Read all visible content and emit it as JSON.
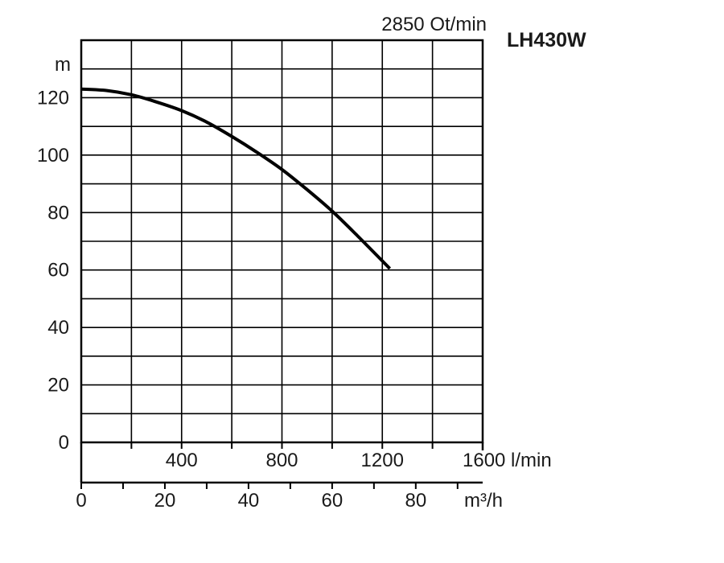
{
  "chart_data": {
    "type": "line",
    "title": "LH430W",
    "subtitle": "2850 Ot/min",
    "ylabel": "m",
    "ylim": [
      0,
      140
    ],
    "yticks": [
      0,
      20,
      40,
      60,
      80,
      100,
      120
    ],
    "xlim": [
      0,
      1600
    ],
    "xlabel_lpm": "l/min",
    "xticks_lpm": [
      400,
      800,
      1200,
      1600
    ],
    "xticks_lpm_labels": [
      "400",
      "800",
      "1200",
      "1600 l/min"
    ],
    "xlabel_m3h": "m³/h",
    "xticks_m3h": [
      0,
      20,
      40,
      60,
      80
    ],
    "xticks_m3h_labels": [
      "0",
      "20",
      "40",
      "60",
      "80",
      "m³/h"
    ],
    "grid": true,
    "series": [
      {
        "x": [
          0,
          100,
          200,
          300,
          400,
          500,
          600,
          700,
          800,
          900,
          1000,
          1100,
          1230
        ],
        "y": [
          123,
          122.5,
          121,
          118.5,
          115.5,
          111.5,
          106.5,
          101,
          95,
          88,
          80.5,
          72,
          60.5
        ]
      }
    ]
  }
}
